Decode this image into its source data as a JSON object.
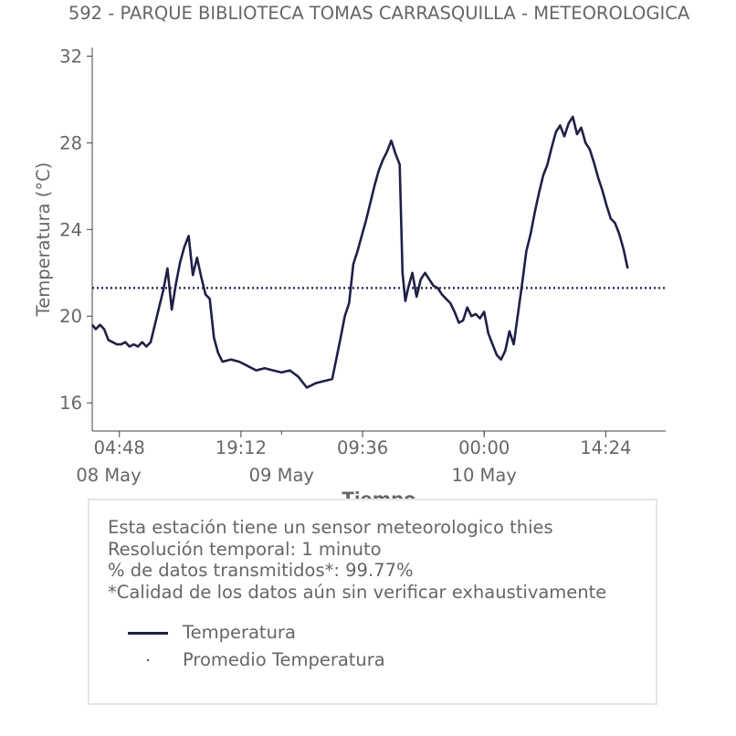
{
  "chart_data": {
    "type": "line",
    "title": "592 - PARQUE BIBLIOTECA TOMAS CARRASQUILLA - METEOROLOGICA",
    "xlabel": "Tiempo",
    "ylabel": "Temperatura (°C)",
    "xlim": [
      "2024-05-08T01:35",
      "2024-05-10T21:30"
    ],
    "ylim": [
      14.7,
      32.4
    ],
    "x_ticks": [
      {
        "time": "2024-05-08T04:48",
        "label": "04:48",
        "sublabel": "08 May"
      },
      {
        "time": "2024-05-08T19:12",
        "label": "19:12",
        "sublabel": ""
      },
      {
        "time": "2024-05-09T09:36",
        "label": "09:36",
        "sublabel": "09 May"
      },
      {
        "time": "2024-05-10T00:00",
        "label": "00:00",
        "sublabel": "10 May"
      },
      {
        "time": "2024-05-10T14:24",
        "label": "14:24",
        "sublabel": ""
      }
    ],
    "x_day_ticks": [
      {
        "time": "2024-05-08T00:00",
        "label": "08 May"
      },
      {
        "time": "2024-05-09T00:00",
        "label": "09 May"
      },
      {
        "time": "2024-05-10T00:00",
        "label": "10 May"
      }
    ],
    "y_ticks": [
      16,
      20,
      24,
      28,
      32
    ],
    "grid": false,
    "series": [
      {
        "name": "Temperatura",
        "color": "#1f2046",
        "style": "solid",
        "points": [
          [
            "2024-05-08T01:35",
            19.6
          ],
          [
            "2024-05-08T02:00",
            19.4
          ],
          [
            "2024-05-08T02:30",
            19.6
          ],
          [
            "2024-05-08T03:00",
            19.4
          ],
          [
            "2024-05-08T03:30",
            18.9
          ],
          [
            "2024-05-08T04:00",
            18.8
          ],
          [
            "2024-05-08T04:30",
            18.7
          ],
          [
            "2024-05-08T05:00",
            18.7
          ],
          [
            "2024-05-08T05:30",
            18.8
          ],
          [
            "2024-05-08T06:00",
            18.6
          ],
          [
            "2024-05-08T06:30",
            18.7
          ],
          [
            "2024-05-08T07:00",
            18.6
          ],
          [
            "2024-05-08T07:30",
            18.8
          ],
          [
            "2024-05-08T08:00",
            18.6
          ],
          [
            "2024-05-08T08:30",
            18.8
          ],
          [
            "2024-05-08T09:00",
            19.6
          ],
          [
            "2024-05-08T09:30",
            20.4
          ],
          [
            "2024-05-08T10:00",
            21.2
          ],
          [
            "2024-05-08T10:30",
            22.2
          ],
          [
            "2024-05-08T11:00",
            20.3
          ],
          [
            "2024-05-08T11:30",
            21.5
          ],
          [
            "2024-05-08T12:00",
            22.5
          ],
          [
            "2024-05-08T12:30",
            23.2
          ],
          [
            "2024-05-08T13:00",
            23.7
          ],
          [
            "2024-05-08T13:30",
            21.9
          ],
          [
            "2024-05-08T14:00",
            22.7
          ],
          [
            "2024-05-08T14:30",
            21.8
          ],
          [
            "2024-05-08T15:00",
            21.0
          ],
          [
            "2024-05-08T15:30",
            20.8
          ],
          [
            "2024-05-08T16:00",
            19.0
          ],
          [
            "2024-05-08T16:30",
            18.3
          ],
          [
            "2024-05-08T17:00",
            17.9
          ],
          [
            "2024-05-08T18:00",
            18.0
          ],
          [
            "2024-05-08T19:00",
            17.9
          ],
          [
            "2024-05-08T20:00",
            17.7
          ],
          [
            "2024-05-08T21:00",
            17.5
          ],
          [
            "2024-05-08T22:00",
            17.6
          ],
          [
            "2024-05-08T23:00",
            17.5
          ],
          [
            "2024-05-09T00:00",
            17.4
          ],
          [
            "2024-05-09T01:00",
            17.5
          ],
          [
            "2024-05-09T02:00",
            17.2
          ],
          [
            "2024-05-09T03:00",
            16.7
          ],
          [
            "2024-05-09T04:00",
            16.9
          ],
          [
            "2024-05-09T05:00",
            17.0
          ],
          [
            "2024-05-09T06:00",
            17.1
          ],
          [
            "2024-05-09T07:00",
            19.0
          ],
          [
            "2024-05-09T07:30",
            20.0
          ],
          [
            "2024-05-09T08:00",
            20.6
          ],
          [
            "2024-05-09T08:30",
            22.4
          ],
          [
            "2024-05-09T09:00",
            23.0
          ],
          [
            "2024-05-09T09:30",
            23.7
          ],
          [
            "2024-05-09T10:00",
            24.4
          ],
          [
            "2024-05-09T10:30",
            25.2
          ],
          [
            "2024-05-09T11:00",
            26.0
          ],
          [
            "2024-05-09T11:30",
            26.7
          ],
          [
            "2024-05-09T12:00",
            27.2
          ],
          [
            "2024-05-09T12:30",
            27.6
          ],
          [
            "2024-05-09T13:00",
            28.1
          ],
          [
            "2024-05-09T13:30",
            27.5
          ],
          [
            "2024-05-09T14:00",
            27.0
          ],
          [
            "2024-05-09T14:20",
            22.0
          ],
          [
            "2024-05-09T14:40",
            20.7
          ],
          [
            "2024-05-09T15:00",
            21.3
          ],
          [
            "2024-05-09T15:30",
            22.0
          ],
          [
            "2024-05-09T16:00",
            20.9
          ],
          [
            "2024-05-09T16:30",
            21.7
          ],
          [
            "2024-05-09T17:00",
            22.0
          ],
          [
            "2024-05-09T17:30",
            21.7
          ],
          [
            "2024-05-09T18:00",
            21.4
          ],
          [
            "2024-05-09T18:30",
            21.3
          ],
          [
            "2024-05-09T19:00",
            21.0
          ],
          [
            "2024-05-09T19:30",
            20.8
          ],
          [
            "2024-05-09T20:00",
            20.6
          ],
          [
            "2024-05-09T20:30",
            20.2
          ],
          [
            "2024-05-09T21:00",
            19.7
          ],
          [
            "2024-05-09T21:30",
            19.8
          ],
          [
            "2024-05-09T22:00",
            20.4
          ],
          [
            "2024-05-09T22:30",
            20.0
          ],
          [
            "2024-05-09T23:00",
            20.1
          ],
          [
            "2024-05-09T23:30",
            19.9
          ],
          [
            "2024-05-10T00:00",
            20.2
          ],
          [
            "2024-05-10T00:30",
            19.2
          ],
          [
            "2024-05-10T01:00",
            18.7
          ],
          [
            "2024-05-10T01:30",
            18.2
          ],
          [
            "2024-05-10T02:00",
            18.0
          ],
          [
            "2024-05-10T02:30",
            18.4
          ],
          [
            "2024-05-10T03:00",
            19.3
          ],
          [
            "2024-05-10T03:30",
            18.7
          ],
          [
            "2024-05-10T04:00",
            20.1
          ],
          [
            "2024-05-10T04:30",
            21.5
          ],
          [
            "2024-05-10T05:00",
            23.0
          ],
          [
            "2024-05-10T05:30",
            23.8
          ],
          [
            "2024-05-10T06:00",
            24.8
          ],
          [
            "2024-05-10T06:30",
            25.7
          ],
          [
            "2024-05-10T07:00",
            26.5
          ],
          [
            "2024-05-10T07:30",
            27.0
          ],
          [
            "2024-05-10T08:00",
            27.8
          ],
          [
            "2024-05-10T08:30",
            28.5
          ],
          [
            "2024-05-10T09:00",
            28.8
          ],
          [
            "2024-05-10T09:30",
            28.3
          ],
          [
            "2024-05-10T10:00",
            28.9
          ],
          [
            "2024-05-10T10:30",
            29.2
          ],
          [
            "2024-05-10T11:00",
            28.4
          ],
          [
            "2024-05-10T11:30",
            28.7
          ],
          [
            "2024-05-10T12:00",
            28.0
          ],
          [
            "2024-05-10T12:30",
            27.7
          ],
          [
            "2024-05-10T13:00",
            27.1
          ],
          [
            "2024-05-10T13:30",
            26.4
          ],
          [
            "2024-05-10T14:00",
            25.8
          ],
          [
            "2024-05-10T14:30",
            25.1
          ],
          [
            "2024-05-10T15:00",
            24.5
          ],
          [
            "2024-05-10T15:30",
            24.3
          ],
          [
            "2024-05-10T16:00",
            23.8
          ],
          [
            "2024-05-10T16:30",
            23.1
          ],
          [
            "2024-05-10T17:00",
            22.2
          ]
        ]
      },
      {
        "name": "Promedio Temperatura",
        "color": "#1f2046",
        "style": "dotted",
        "constant": 21.3
      }
    ]
  },
  "info_box": {
    "lines": [
      "Esta estación tiene un sensor meteorologico thies",
      "Resolución temporal: 1 minuto",
      "% de datos transmitidos*: 99.77%",
      "*Calidad de los datos aún sin verificar exhaustivamente"
    ],
    "legend": [
      {
        "label": "Temperatura",
        "marker": "line"
      },
      {
        "label": "Promedio Temperatura",
        "marker": "dot"
      }
    ]
  }
}
